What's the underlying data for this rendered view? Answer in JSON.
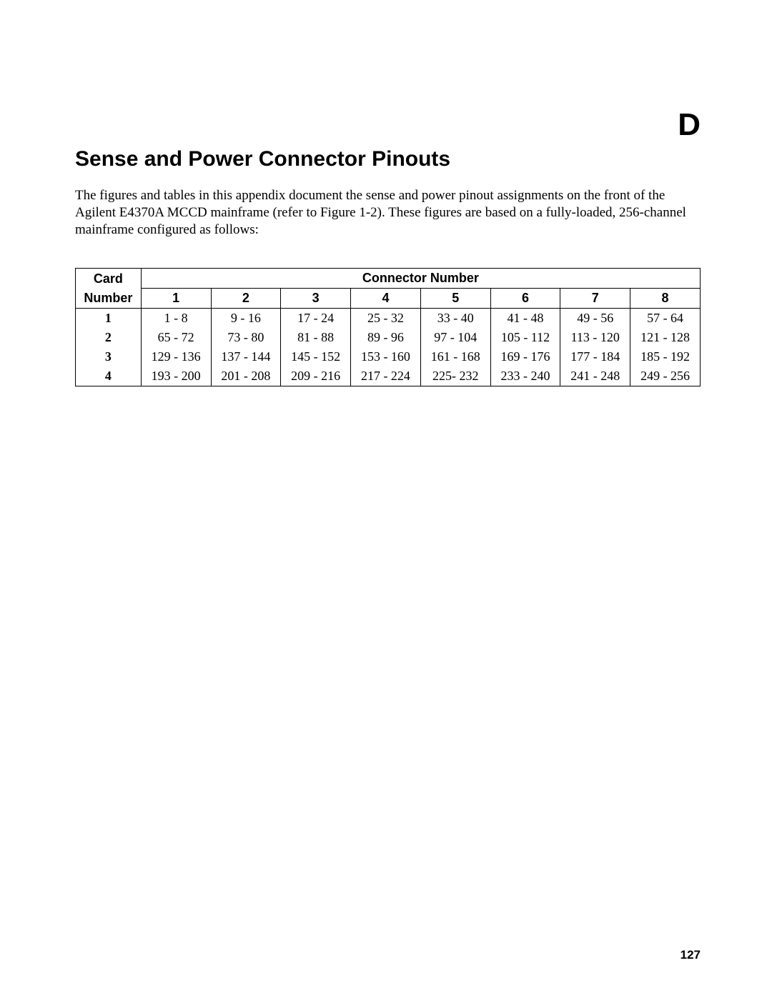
{
  "appendix_letter": "D",
  "title": "Sense and Power Connector Pinouts",
  "intro_text": "The figures and tables in this appendix document the sense and power pinout assignments on the front of the Agilent E4370A MCCD mainframe (refer to Figure 1-2). These figures are based on a fully-loaded, 256-channel mainframe configured as follows:",
  "table": {
    "header_card": "Card",
    "header_number": "Number",
    "header_connector": "Connector Number",
    "columns": [
      "1",
      "2",
      "3",
      "4",
      "5",
      "6",
      "7",
      "8"
    ],
    "rows": [
      {
        "label": "1",
        "cells": [
          "1 - 8",
          "9 - 16",
          "17 - 24",
          "25 - 32",
          "33 - 40",
          "41 - 48",
          "49 - 56",
          "57 - 64"
        ]
      },
      {
        "label": "2",
        "cells": [
          "65 - 72",
          "73 - 80",
          "81 - 88",
          "89 - 96",
          "97 - 104",
          "105 - 112",
          "113 - 120",
          "121 - 128"
        ]
      },
      {
        "label": "3",
        "cells": [
          "129 - 136",
          "137 - 144",
          "145 - 152",
          "153 - 160",
          "161 - 168",
          "169 - 176",
          "177 - 184",
          "185 - 192"
        ]
      },
      {
        "label": "4",
        "cells": [
          "193 - 200",
          "201 - 208",
          "209 - 216",
          "217 - 224",
          "225- 232",
          "233 - 240",
          "241 - 248",
          "249 - 256"
        ]
      }
    ]
  },
  "page_number": "127",
  "style": {
    "background_color": "#ffffff",
    "text_color": "#000000",
    "border_color": "#000000",
    "title_font": "Arial",
    "title_fontsize_pt": 22,
    "appendix_fontsize_pt": 33,
    "body_font": "Times New Roman",
    "body_fontsize_pt": 14,
    "table_fontsize_pt": 13.5
  }
}
